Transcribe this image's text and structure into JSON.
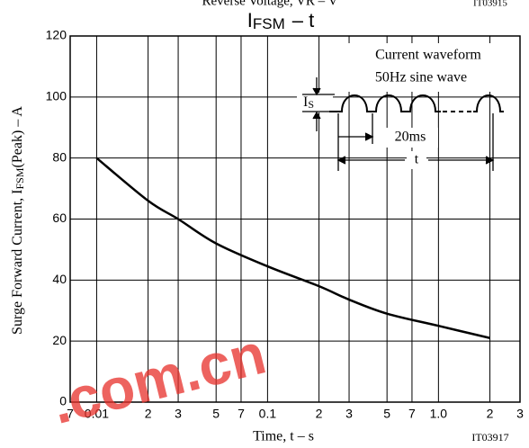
{
  "chart_data": {
    "type": "line",
    "top_caption": "Reverse Voltage, VR – V",
    "top_figure_id": "IT03915",
    "title": {
      "symbol": "I",
      "subscript": "FSM",
      "suffix": "–  t"
    },
    "y_label": {
      "prefix": "Surge Forward Current, I",
      "subscript": "FSM",
      "suffix": "(Peak)  –  A"
    },
    "x_label": "Time, t  –  s",
    "figure_id": "IT03917",
    "watermark": ".com.cn",
    "inset": {
      "line1": "Current waveform",
      "line2": "50Hz sine wave",
      "is_symbol": "I",
      "is_subscript": "S",
      "period": "20ms",
      "duration": "t"
    },
    "x": [
      0.01,
      0.02,
      0.03,
      0.05,
      0.1,
      0.2,
      0.3,
      0.5,
      1,
      2
    ],
    "values": [
      80,
      66,
      60,
      52,
      44.5,
      38,
      33.6,
      29,
      25,
      21
    ],
    "color": "#000000",
    "xscale": "log",
    "xlim": [
      0.007,
      3
    ],
    "ylim": [
      0,
      120
    ],
    "xticks": [
      {
        "value": 0.007,
        "label": "7"
      },
      0.01,
      {
        "value": 0.02,
        "label": "2"
      },
      {
        "value": 0.03,
        "label": "3"
      },
      {
        "value": 0.05,
        "label": "5"
      },
      {
        "value": 0.07,
        "label": "7"
      },
      0.1,
      {
        "value": 0.2,
        "label": "2"
      },
      {
        "value": 0.3,
        "label": "3"
      },
      {
        "value": 0.5,
        "label": "5"
      },
      {
        "value": 0.7,
        "label": "7"
      },
      {
        "value": 1,
        "label": "1.0"
      },
      2,
      3
    ],
    "yticks": [
      0,
      20,
      40,
      60,
      80,
      100,
      120
    ],
    "grid": true
  }
}
